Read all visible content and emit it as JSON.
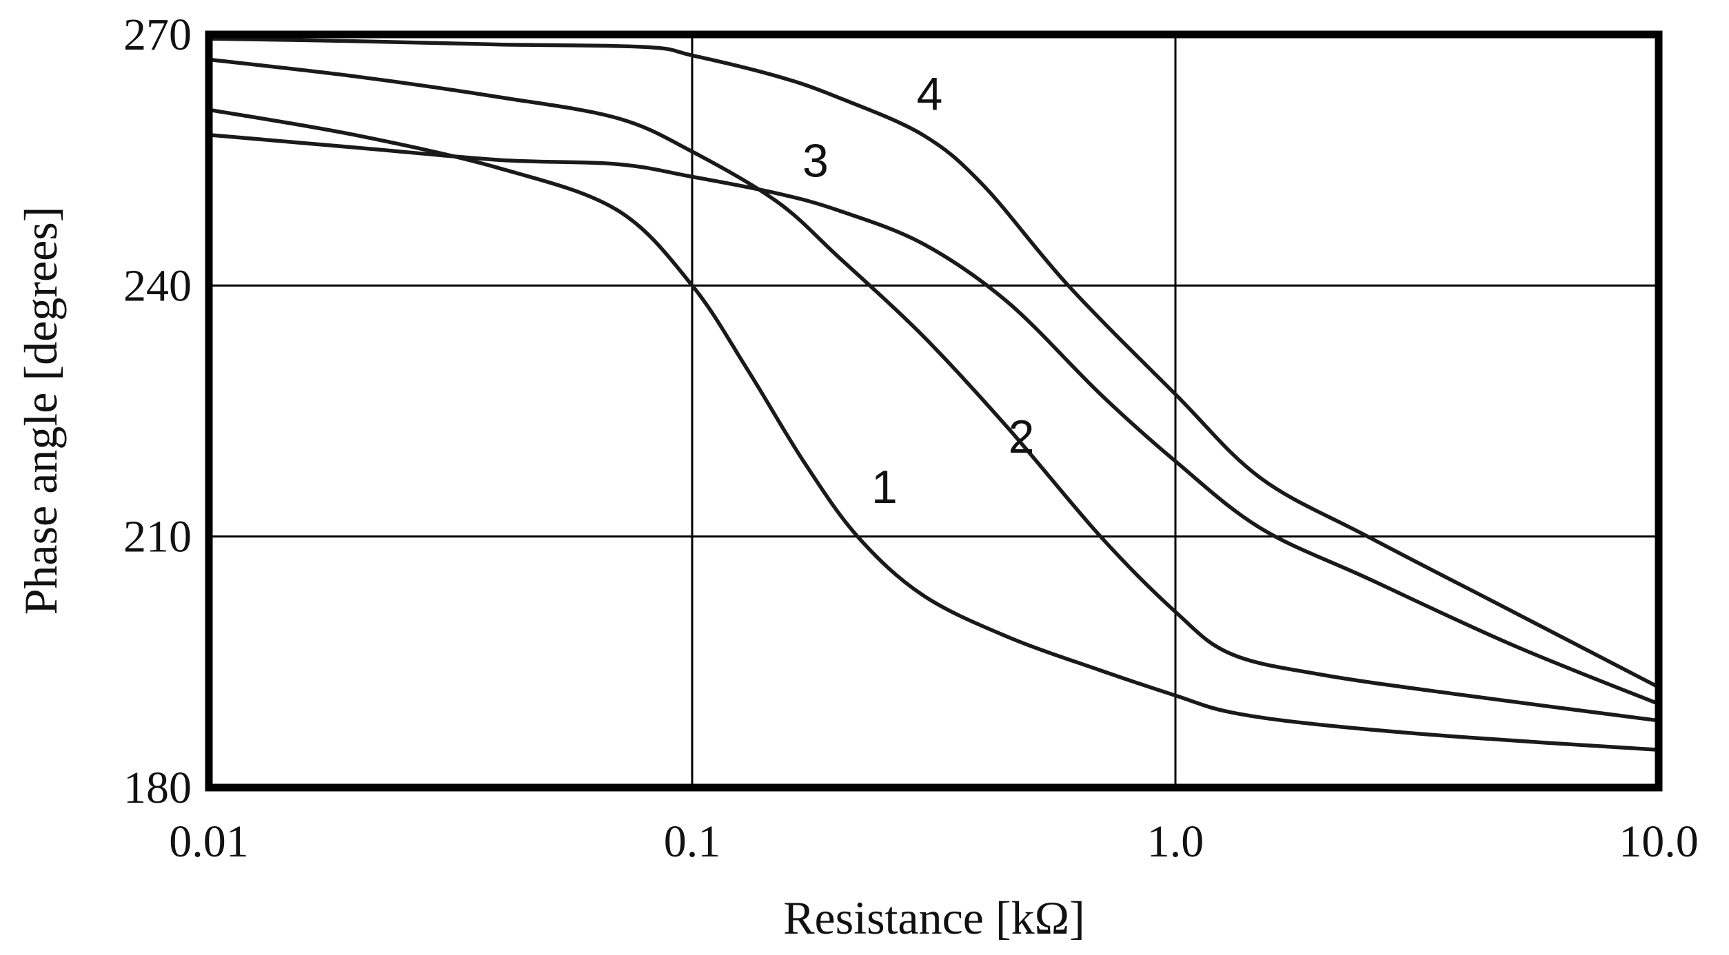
{
  "chart_data": {
    "type": "line",
    "xlabel": "Resistance [kΩ]",
    "ylabel": "Phase angle [degrees]",
    "x_scale": "log",
    "xlim": [
      0.01,
      10.0
    ],
    "ylim": [
      180,
      270
    ],
    "x_ticks": [
      {
        "value": 0.01,
        "label": "0.01"
      },
      {
        "value": 0.1,
        "label": "0.1"
      },
      {
        "value": 1.0,
        "label": "1.0"
      },
      {
        "value": 10.0,
        "label": "10.0"
      }
    ],
    "y_ticks": [
      {
        "value": 180,
        "label": "180"
      },
      {
        "value": 210,
        "label": "210"
      },
      {
        "value": 240,
        "label": "240"
      },
      {
        "value": 270,
        "label": "270"
      }
    ],
    "grid": true,
    "line_color": "#1a1a1a",
    "series": [
      {
        "label": "1",
        "label_at": [
          0.25,
          214
        ],
        "x": [
          0.01,
          0.02,
          0.04,
          0.07,
          0.1,
          0.13,
          0.17,
          0.22,
          0.3,
          0.45,
          0.7,
          1.0,
          1.3,
          2.0,
          4.0,
          10.0
        ],
        "y": [
          261,
          258,
          254,
          249,
          240,
          230,
          219,
          210,
          203,
          198,
          194,
          191,
          189,
          187.5,
          186,
          184.5
        ]
      },
      {
        "label": "2",
        "label_at": [
          0.48,
          220
        ],
        "x": [
          0.01,
          0.02,
          0.04,
          0.07,
          0.1,
          0.15,
          0.2,
          0.3,
          0.45,
          0.7,
          1.0,
          1.3,
          2.0,
          4.0,
          10.0
        ],
        "y": [
          267,
          265,
          262.5,
          260,
          256,
          250,
          243.5,
          234,
          223,
          210,
          201,
          196,
          193.5,
          191,
          188
        ]
      },
      {
        "label": "3",
        "label_at": [
          0.18,
          253
        ],
        "x": [
          0.01,
          0.02,
          0.04,
          0.07,
          0.1,
          0.15,
          0.2,
          0.3,
          0.45,
          0.7,
          1.0,
          1.5,
          2.5,
          5.0,
          10.0
        ],
        "y": [
          258,
          256.5,
          255,
          254.5,
          253,
          251,
          249,
          245,
          238,
          227,
          219,
          211,
          205,
          197,
          190
        ]
      },
      {
        "label": "4",
        "label_at": [
          0.31,
          261
        ],
        "x": [
          0.01,
          0.02,
          0.04,
          0.08,
          0.1,
          0.15,
          0.2,
          0.3,
          0.4,
          0.6,
          1.0,
          1.5,
          2.5,
          5.0,
          10.0
        ],
        "y": [
          269.5,
          269.2,
          268.8,
          268.5,
          267.5,
          265,
          262.5,
          258,
          252,
          240,
          227,
          217,
          210,
          201,
          192
        ]
      }
    ]
  }
}
